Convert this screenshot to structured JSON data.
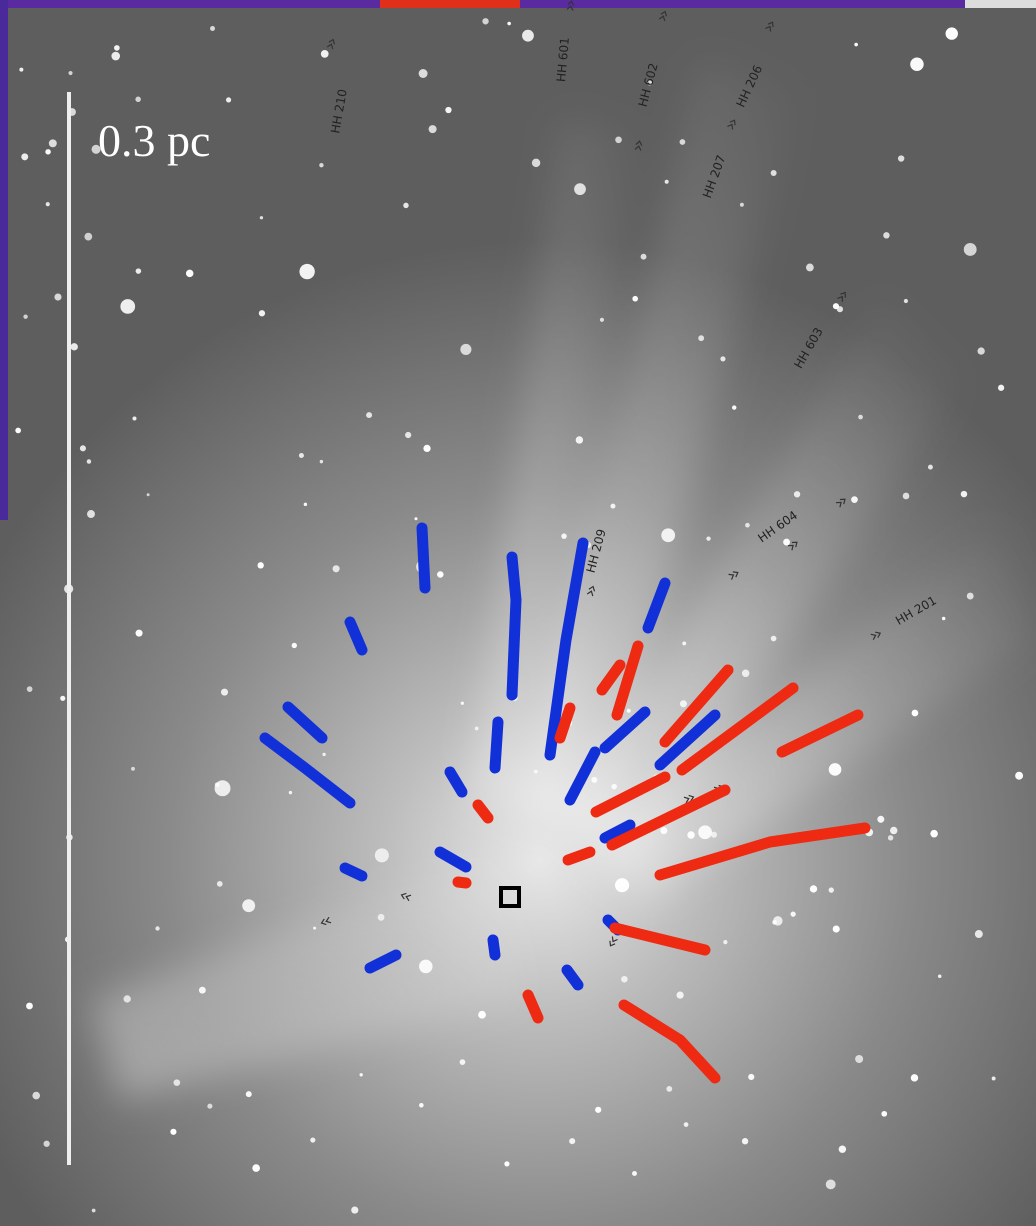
{
  "scale_bar": {
    "label": "0.3 pc"
  },
  "objects": [
    {
      "label": "HH 210"
    },
    {
      "label": "HH 601"
    },
    {
      "label": "HH 602"
    },
    {
      "label": "HH 206"
    },
    {
      "label": "HH 207"
    },
    {
      "label": "HH 603"
    },
    {
      "label": "HH 209"
    },
    {
      "label": "HH 604"
    },
    {
      "label": "HH 201"
    }
  ]
}
